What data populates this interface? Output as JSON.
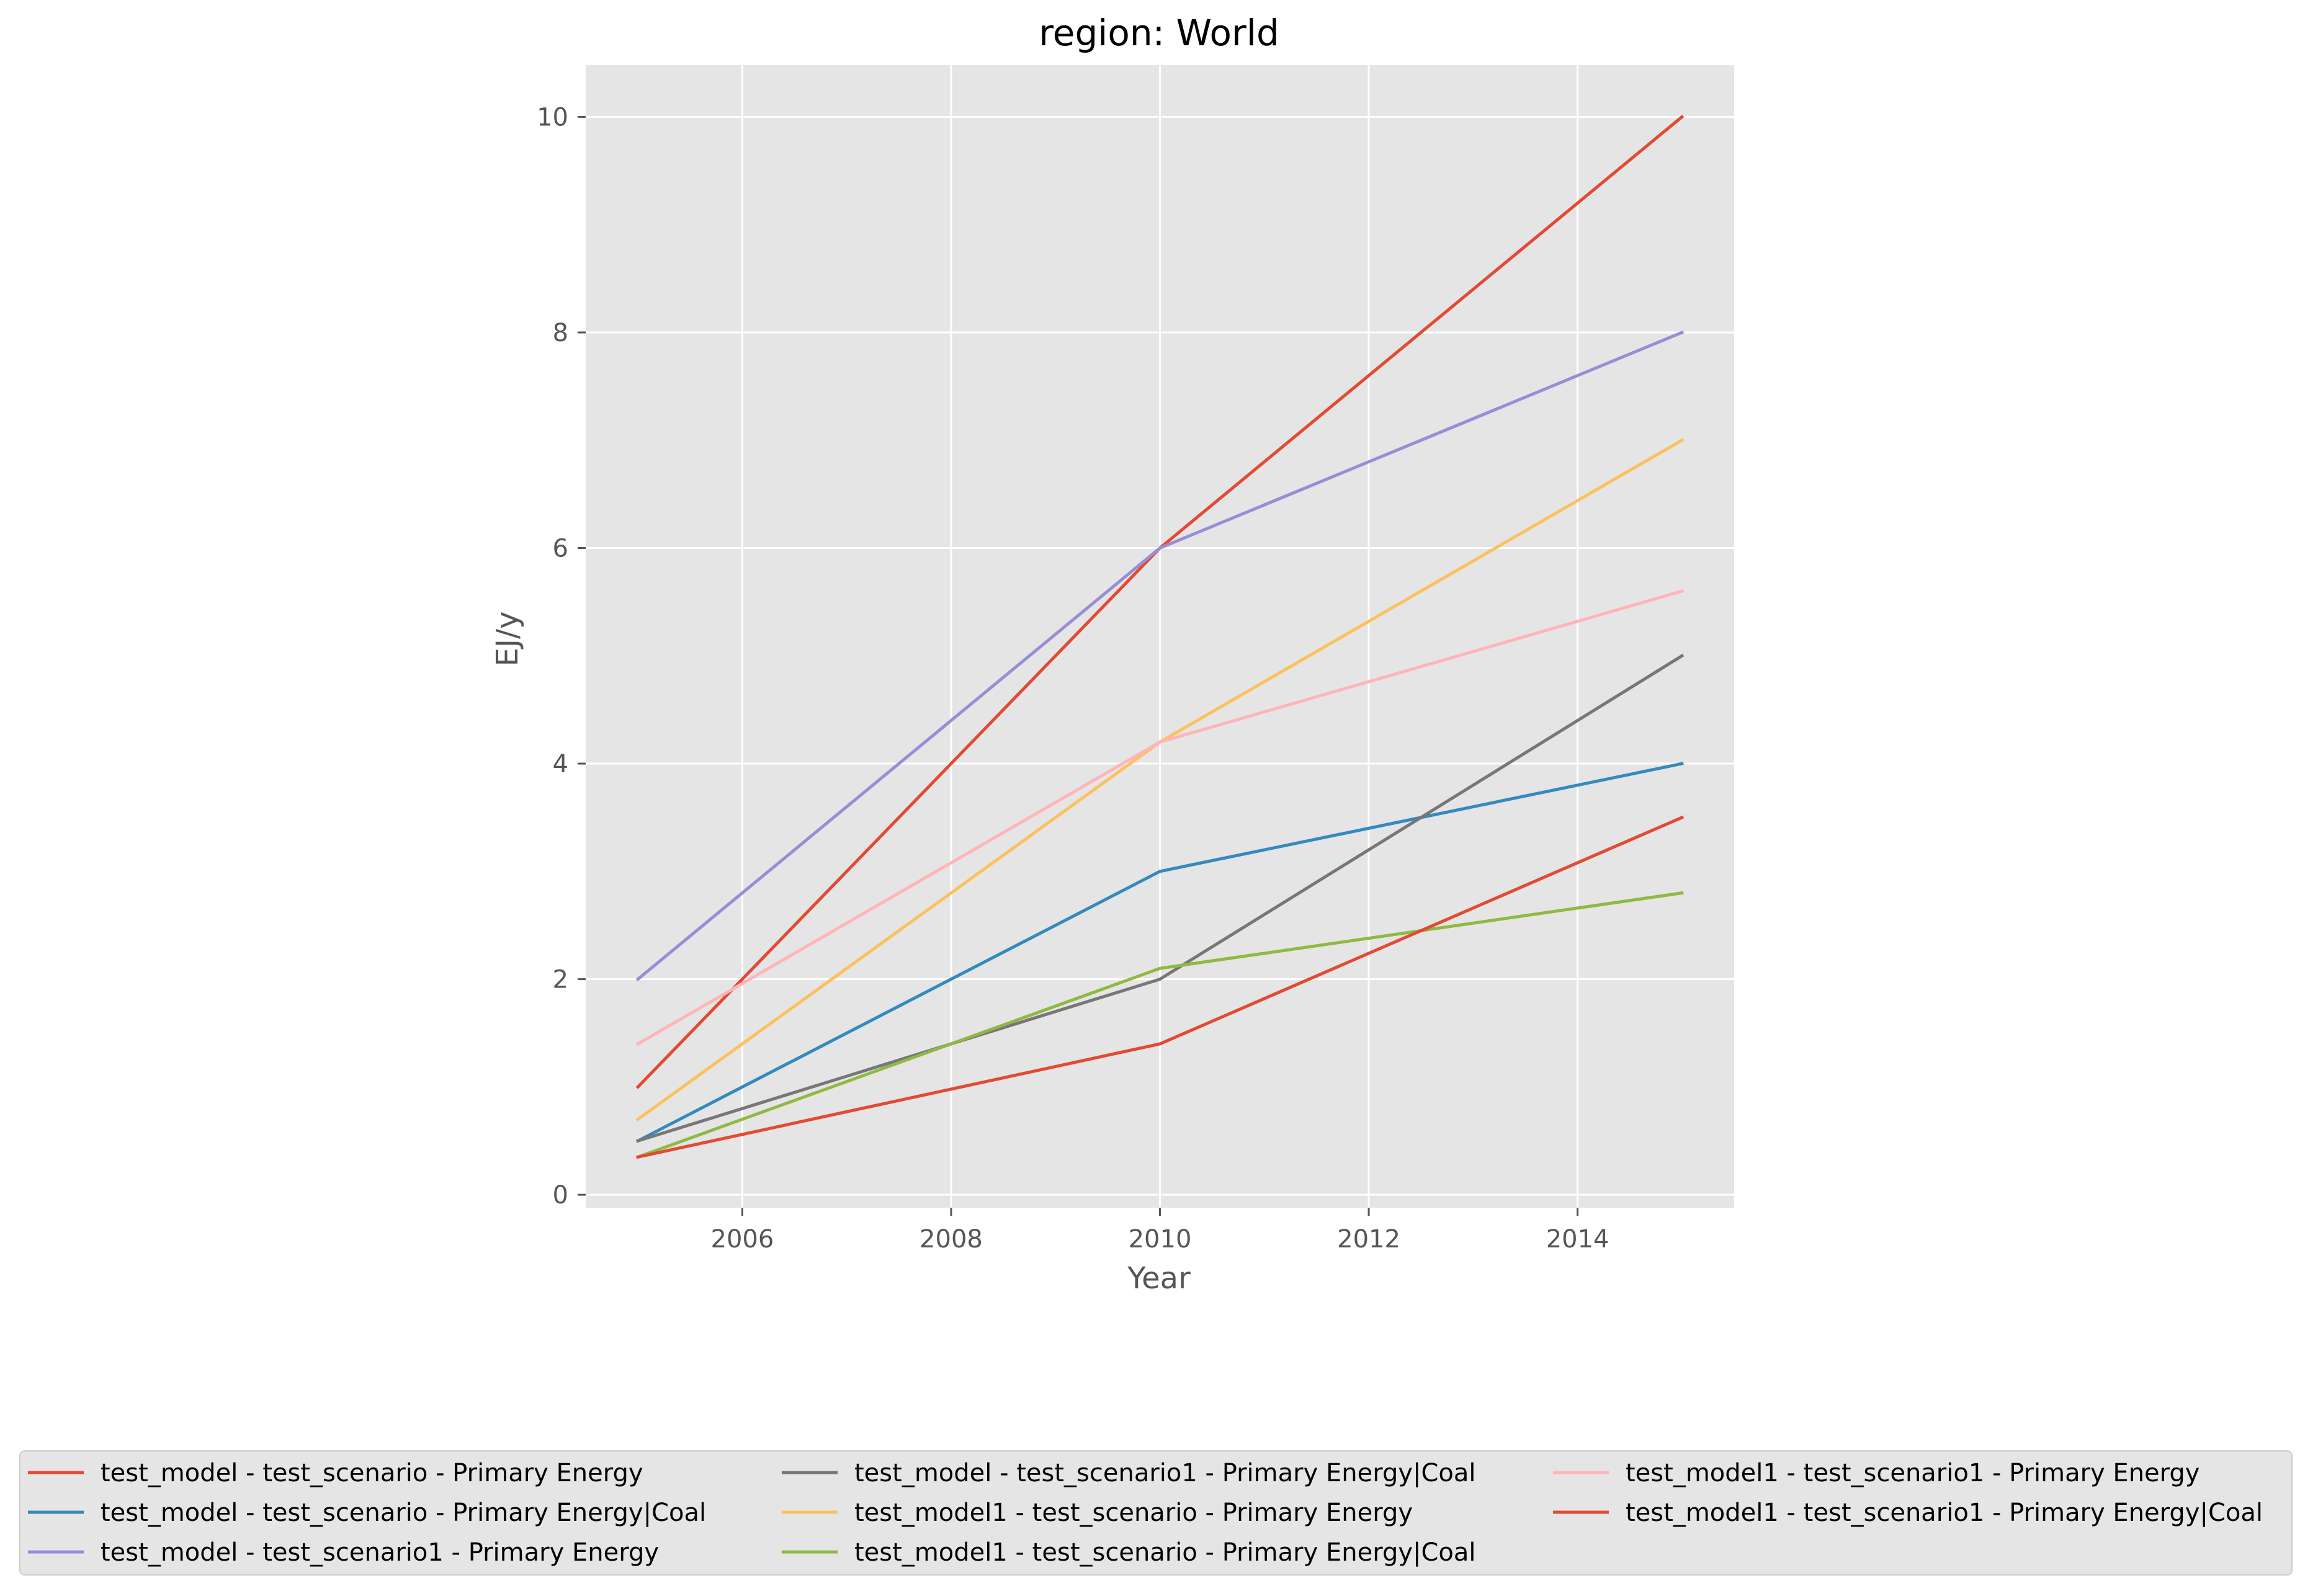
{
  "chart_data": {
    "type": "line",
    "title": "region: World",
    "xlabel": "Year",
    "ylabel": "EJ/y",
    "xlim": [
      2004.5,
      2015.5
    ],
    "ylim": [
      -0.12,
      10.48
    ],
    "xticks": [
      2006,
      2008,
      2010,
      2012,
      2014
    ],
    "yticks": [
      0,
      2,
      4,
      6,
      8,
      10
    ],
    "grid": true,
    "legend_position": "bottom",
    "x": [
      2005,
      2010,
      2015
    ],
    "series": [
      {
        "name": "test_model - test_scenario - Primary Energy",
        "color": "#E24A33",
        "values": [
          1,
          6,
          10
        ]
      },
      {
        "name": "test_model - test_scenario - Primary Energy|Coal",
        "color": "#348ABD",
        "values": [
          0.5,
          3,
          4
        ]
      },
      {
        "name": "test_model - test_scenario1 - Primary Energy",
        "color": "#988ED5",
        "values": [
          2,
          6,
          8
        ]
      },
      {
        "name": "test_model - test_scenario1 - Primary Energy|Coal",
        "color": "#777777",
        "values": [
          0.5,
          2,
          5
        ]
      },
      {
        "name": "test_model1 - test_scenario - Primary Energy",
        "color": "#FBC15E",
        "values": [
          0.7,
          4.2,
          7
        ]
      },
      {
        "name": "test_model1 - test_scenario - Primary Energy|Coal",
        "color": "#8EBA42",
        "values": [
          0.35,
          2.1,
          2.8
        ]
      },
      {
        "name": "test_model1 - test_scenario1 - Primary Energy",
        "color": "#FFB5B8",
        "values": [
          1.4,
          4.2,
          5.6
        ]
      },
      {
        "name": "test_model1 - test_scenario1 - Primary Energy|Coal",
        "color": "#E24A33",
        "values": [
          0.35,
          1.4,
          3.5
        ]
      }
    ]
  }
}
